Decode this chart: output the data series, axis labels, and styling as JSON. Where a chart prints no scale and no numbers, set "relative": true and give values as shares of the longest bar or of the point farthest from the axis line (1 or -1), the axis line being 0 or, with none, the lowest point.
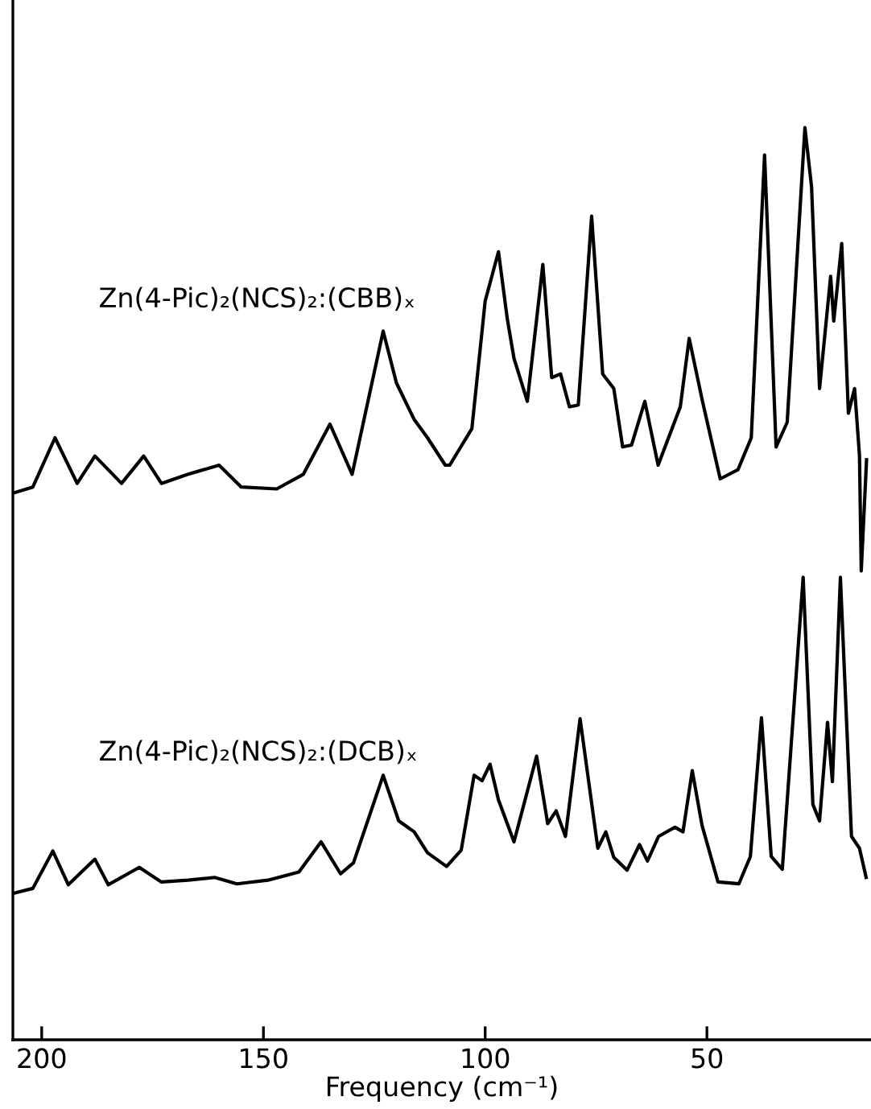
{
  "chart_data": {
    "type": "line",
    "relative": true,
    "xlabel": "Frequency (cm⁻¹)",
    "xlim": [
      206.5,
      13
    ],
    "xticks": [
      200,
      150,
      100,
      50
    ],
    "grid": false,
    "legend": false,
    "marker": "none",
    "line_style": "solid",
    "series": [
      {
        "name": "Zn(4-Pic)₂(NCS)₂:(CBB)ₓ",
        "color": "#000000",
        "x": [
          206,
          202,
          197,
          192,
          188,
          182,
          177,
          173,
          167,
          160,
          155,
          147,
          141,
          135,
          130,
          123,
          120,
          116,
          113,
          109,
          108,
          103,
          100,
          97,
          95,
          93.5,
          90.5,
          87,
          85,
          83,
          81,
          79,
          76,
          73.5,
          71,
          69,
          67,
          64,
          61,
          56,
          54,
          51,
          47,
          43,
          40,
          37,
          34.4,
          31.9,
          27.9,
          26.4,
          24.6,
          22.1,
          21.4,
          19.6,
          18.1,
          16.7,
          15.6,
          15.2,
          14
        ],
        "values": [
          0.6,
          0.606,
          0.66,
          0.61,
          0.64,
          0.61,
          0.64,
          0.61,
          0.62,
          0.63,
          0.606,
          0.604,
          0.62,
          0.675,
          0.62,
          0.777,
          0.72,
          0.68,
          0.66,
          0.63,
          0.63,
          0.67,
          0.81,
          0.864,
          0.79,
          0.747,
          0.7,
          0.85,
          0.726,
          0.73,
          0.694,
          0.696,
          0.903,
          0.73,
          0.714,
          0.65,
          0.652,
          0.7,
          0.63,
          0.694,
          0.769,
          0.7,
          0.615,
          0.625,
          0.66,
          0.97,
          0.65,
          0.677,
          1.0,
          0.935,
          0.714,
          0.837,
          0.788,
          0.873,
          0.687,
          0.714,
          0.641,
          0.514,
          0.636
        ]
      },
      {
        "name": "Zn(4-Pic)₂(NCS)₂:(DCB)ₓ",
        "color": "#000000",
        "x": [
          206,
          202,
          197.5,
          194,
          188,
          185,
          178,
          173,
          167,
          161,
          156,
          149,
          142,
          137,
          132.6,
          129.7,
          123,
          119.5,
          116,
          113,
          108.7,
          105.4,
          102.5,
          100.7,
          98.9,
          97,
          93.5,
          88.4,
          85.9,
          84,
          81.9,
          78.6,
          74.6,
          72.8,
          71,
          68,
          65.2,
          63.4,
          60.9,
          57.2,
          55.4,
          53.3,
          51.1,
          47.5,
          42.8,
          40.2,
          37.7,
          35.5,
          33,
          28.3,
          26.1,
          24.6,
          22.8,
          21.7,
          19.9,
          17.4,
          15.6,
          14.1
        ],
        "values": [
          0.161,
          0.166,
          0.207,
          0.17,
          0.198,
          0.17,
          0.189,
          0.173,
          0.175,
          0.178,
          0.171,
          0.175,
          0.184,
          0.217,
          0.182,
          0.194,
          0.29,
          0.24,
          0.228,
          0.205,
          0.19,
          0.208,
          0.29,
          0.284,
          0.302,
          0.263,
          0.217,
          0.311,
          0.237,
          0.251,
          0.223,
          0.352,
          0.21,
          0.228,
          0.2,
          0.186,
          0.214,
          0.196,
          0.223,
          0.233,
          0.228,
          0.295,
          0.235,
          0.173,
          0.171,
          0.201,
          0.353,
          0.201,
          0.187,
          0.507,
          0.258,
          0.24,
          0.348,
          0.283,
          0.507,
          0.223,
          0.21,
          0.178
        ]
      }
    ]
  }
}
